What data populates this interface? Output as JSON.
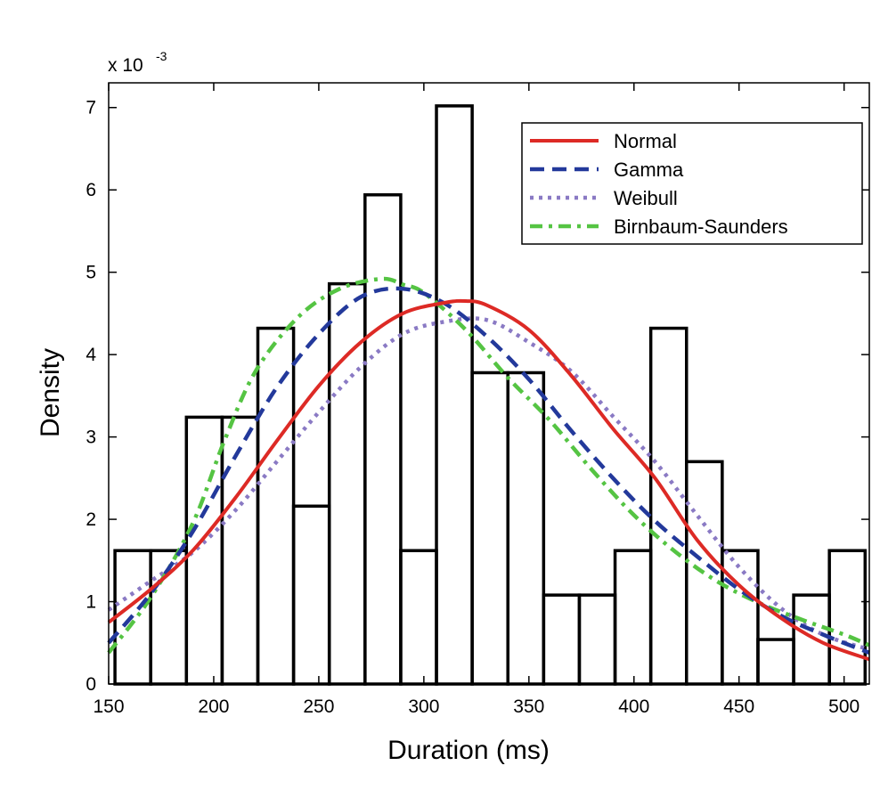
{
  "chart_data": {
    "type": "histogram",
    "xlabel": "Duration (ms)",
    "ylabel": "Density",
    "y_multiplier_base": "x 10",
    "y_multiplier_exp": "-3",
    "xlim": [
      150,
      512
    ],
    "ylim": [
      0,
      7.3
    ],
    "xticks": [
      150,
      200,
      250,
      300,
      350,
      400,
      450,
      500
    ],
    "xtick_labels": [
      "150",
      "200",
      "250",
      "300",
      "350",
      "400",
      "450",
      "500"
    ],
    "yticks": [
      0,
      1,
      2,
      3,
      4,
      5,
      6,
      7
    ],
    "ytick_labels": [
      "0",
      "1",
      "2",
      "3",
      "4",
      "5",
      "6",
      "7"
    ],
    "bin_edges": [
      153,
      170,
      187,
      204,
      221,
      238,
      255,
      272,
      289,
      306,
      323,
      340,
      357,
      374,
      391,
      408,
      425,
      442,
      459,
      476,
      493,
      510
    ],
    "bin_heights": [
      1.62,
      1.62,
      3.24,
      3.24,
      4.32,
      2.16,
      4.86,
      5.94,
      1.62,
      7.02,
      3.78,
      3.78,
      1.08,
      1.08,
      1.62,
      4.32,
      2.7,
      1.62,
      0.54,
      1.08,
      1.62
    ],
    "legend": {
      "position": "top-right",
      "entries": [
        {
          "label": "Normal",
          "color": "#dd2a25",
          "style": "solid"
        },
        {
          "label": "Gamma",
          "color": "#23399b",
          "style": "dashed"
        },
        {
          "label": "Weibull",
          "color": "#8a7ac4",
          "style": "dotted"
        },
        {
          "label": "Birnbaum-Saunders",
          "color": "#55c443",
          "style": "dashdot"
        }
      ]
    },
    "series": [
      {
        "name": "Normal",
        "x": [
          150,
          170,
          190,
          210,
          230,
          250,
          270,
          290,
          310,
          320,
          330,
          350,
          370,
          390,
          410,
          430,
          450,
          470,
          490,
          512
        ],
        "y": [
          0.75,
          1.15,
          1.62,
          2.25,
          2.95,
          3.62,
          4.15,
          4.5,
          4.63,
          4.65,
          4.6,
          4.3,
          3.75,
          3.1,
          2.5,
          1.75,
          1.2,
          0.8,
          0.5,
          0.3
        ]
      },
      {
        "name": "Gamma",
        "x": [
          150,
          170,
          190,
          210,
          230,
          250,
          270,
          290,
          310,
          330,
          350,
          370,
          390,
          410,
          430,
          450,
          470,
          490,
          512
        ],
        "y": [
          0.5,
          1.1,
          1.85,
          2.75,
          3.6,
          4.25,
          4.7,
          4.8,
          4.62,
          4.22,
          3.7,
          3.08,
          2.5,
          1.98,
          1.55,
          1.15,
          0.83,
          0.6,
          0.38
        ]
      },
      {
        "name": "Weibull",
        "x": [
          150,
          170,
          190,
          210,
          230,
          250,
          270,
          290,
          310,
          330,
          350,
          370,
          390,
          410,
          430,
          450,
          470,
          490,
          512
        ],
        "y": [
          0.9,
          1.25,
          1.6,
          2.1,
          2.7,
          3.3,
          3.85,
          4.25,
          4.4,
          4.42,
          4.15,
          3.8,
          3.25,
          2.7,
          2.05,
          1.42,
          0.92,
          0.6,
          0.42
        ]
      },
      {
        "name": "Birnbaum-Saunders",
        "x": [
          150,
          170,
          190,
          205,
          220,
          240,
          260,
          280,
          290,
          300,
          320,
          340,
          360,
          380,
          400,
          420,
          440,
          460,
          480,
          500,
          512
        ],
        "y": [
          0.38,
          1.05,
          1.95,
          2.95,
          3.8,
          4.45,
          4.8,
          4.92,
          4.85,
          4.75,
          4.3,
          3.72,
          3.2,
          2.6,
          2.05,
          1.6,
          1.24,
          0.98,
          0.78,
          0.6,
          0.47
        ]
      }
    ]
  }
}
